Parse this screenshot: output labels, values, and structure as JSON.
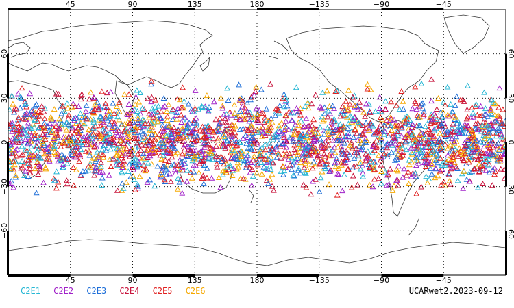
{
  "map": {
    "top_lon_labels": [
      "45",
      "90",
      "135",
      "180",
      "−135",
      "−90",
      "−45"
    ],
    "bottom_lon_labels": [
      "45",
      "90",
      "135",
      "180",
      "−135",
      "−90",
      "−45"
    ],
    "left_lat_labels": [
      "60",
      "30",
      "0",
      "−30",
      "−60"
    ],
    "right_lat_labels": [
      "60",
      "30",
      "0",
      "−30",
      "−60"
    ],
    "lon_range": [
      0,
      360
    ],
    "lat_range": [
      -90,
      90
    ],
    "grid": "dotted",
    "marker_symbol": "triangle-open",
    "observation_lat_band": [
      -42,
      45
    ]
  },
  "legend": {
    "items": [
      {
        "label": "C2E1",
        "color": "#26b7d4"
      },
      {
        "label": "C2E2",
        "color": "#a020c8"
      },
      {
        "label": "C2E3",
        "color": "#1f6fd8"
      },
      {
        "label": "C2E4",
        "color": "#c8143c"
      },
      {
        "label": "C2E5",
        "color": "#e02020"
      },
      {
        "label": "C2E6",
        "color": "#f5a800"
      }
    ]
  },
  "footer": {
    "label": "UCARwet2.2023-09-12"
  }
}
